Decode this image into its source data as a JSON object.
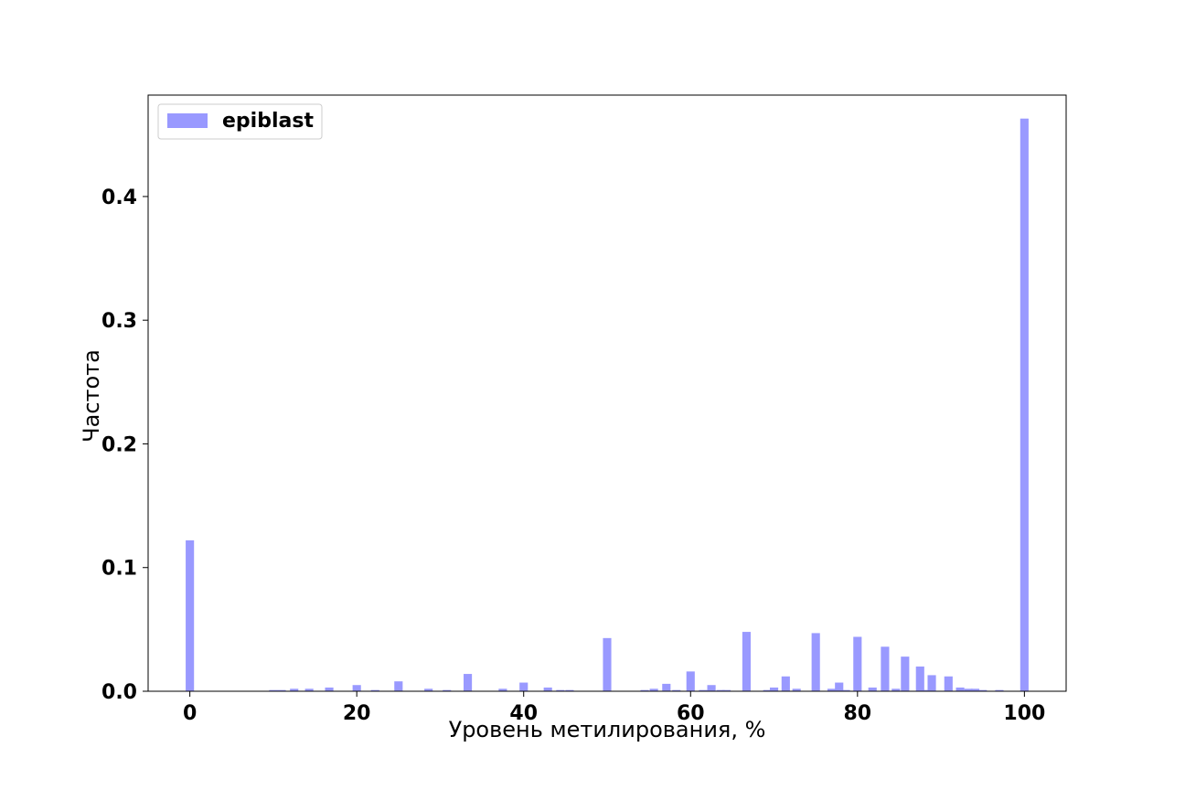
{
  "chart_data": {
    "type": "bar",
    "xlabel": "Уровень метилирования, %",
    "ylabel": "Частота",
    "xlim": [
      -5,
      105
    ],
    "ylim": [
      0,
      0.482
    ],
    "xticks": [
      "0",
      "20",
      "40",
      "60",
      "80",
      "100"
    ],
    "yticks": [
      "0.0",
      "0.1",
      "0.2",
      "0.3",
      "0.4"
    ],
    "grid": false,
    "legend_position": "top-left",
    "bar_width": 1.0,
    "series": [
      {
        "name": "epiblast",
        "color": "#9999ff",
        "x": [
          0,
          10,
          11,
          12.5,
          14.3,
          16.7,
          20,
          22.2,
          25,
          28.6,
          30.8,
          33.3,
          37.5,
          40,
          42.9,
          44.4,
          45.5,
          50,
          54.5,
          55.6,
          57.1,
          58.3,
          60,
          61.5,
          62.5,
          63.6,
          64.3,
          66.7,
          69.2,
          70,
          71.4,
          72.7,
          75,
          76.9,
          77.8,
          78.6,
          80,
          81.8,
          83.3,
          84.6,
          85.7,
          87.5,
          88.2,
          88.9,
          90.9,
          92.3,
          93.3,
          94.1,
          95,
          97,
          100
        ],
        "values": [
          0.122,
          0.001,
          0.001,
          0.002,
          0.002,
          0.003,
          0.005,
          0.001,
          0.008,
          0.002,
          0.001,
          0.014,
          0.002,
          0.007,
          0.003,
          0.001,
          0.001,
          0.043,
          0.001,
          0.002,
          0.006,
          0.001,
          0.016,
          0.001,
          0.005,
          0.001,
          0.001,
          0.048,
          0.001,
          0.003,
          0.012,
          0.002,
          0.047,
          0.002,
          0.007,
          0.001,
          0.044,
          0.003,
          0.036,
          0.002,
          0.028,
          0.02,
          0.001,
          0.013,
          0.012,
          0.003,
          0.002,
          0.002,
          0.001,
          0.001,
          0.463
        ]
      }
    ]
  }
}
